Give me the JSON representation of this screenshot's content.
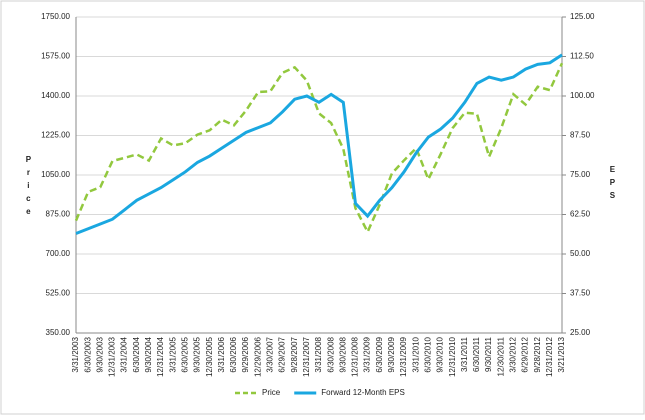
{
  "chart_data": {
    "type": "line",
    "y_label": "Price",
    "y2_label": "EPS",
    "categories": [
      "3/31/2003",
      "6/30/2003",
      "9/30/2003",
      "12/31/2003",
      "3/31/2004",
      "6/30/2004",
      "9/30/2004",
      "12/31/2004",
      "3/31/2005",
      "6/30/2005",
      "9/30/2005",
      "12/30/2005",
      "3/31/2006",
      "6/30/2006",
      "9/29/2006",
      "12/29/2006",
      "3/30/2007",
      "6/29/2007",
      "9/28/2007",
      "12/31/2007",
      "3/31/2008",
      "6/30/2008",
      "9/30/2008",
      "12/31/2008",
      "3/31/2009",
      "6/30/2009",
      "9/30/2009",
      "12/31/2009",
      "3/31/2010",
      "6/30/2010",
      "9/30/2010",
      "12/31/2010",
      "3/31/2011",
      "6/30/2011",
      "9/30/2011",
      "12/30/2011",
      "3/30/2012",
      "6/29/2012",
      "9/28/2012",
      "12/31/2012",
      "3/21/2013"
    ],
    "series": [
      {
        "name": "Price",
        "color": "#92c83e",
        "dashed": true,
        "values": [
          848,
          975,
          996,
          1112,
          1126,
          1141,
          1114,
          1212,
          1181,
          1191,
          1229,
          1248,
          1295,
          1270,
          1336,
          1418,
          1421,
          1503,
          1527,
          1468,
          1323,
          1280,
          1166,
          903,
          798,
          919,
          1057,
          1115,
          1169,
          1031,
          1141,
          1258,
          1326,
          1321,
          1131,
          1258,
          1408,
          1362,
          1441,
          1426,
          1545
        ]
      },
      {
        "name": "Forward 12-Month EPS",
        "color": "#1aa7e0",
        "axis": "y2",
        "values": [
          56.5,
          58,
          59.5,
          61,
          64,
          67,
          69,
          71,
          73.5,
          76,
          79,
          81,
          83.5,
          86,
          88.5,
          90,
          91.5,
          95,
          99,
          100,
          98,
          100.5,
          98,
          66,
          62,
          67,
          71,
          76,
          82,
          87,
          89.5,
          93,
          98,
          104,
          106,
          105,
          106,
          108.5,
          110,
          110.5,
          113
        ]
      }
    ],
    "ylim": [
      350,
      1750
    ],
    "yticks": [
      {
        "value": 350,
        "label": "350.00"
      },
      {
        "value": 525,
        "label": "525.00"
      },
      {
        "value": 700,
        "label": "700.00"
      },
      {
        "value": 875,
        "label": "875.00"
      },
      {
        "value": 1050,
        "label": "1050.00"
      },
      {
        "value": 1225,
        "label": "1225.00"
      },
      {
        "value": 1400,
        "label": "1400.00"
      },
      {
        "value": 1575,
        "label": "1575.00"
      },
      {
        "value": 1750,
        "label": "1750.00"
      }
    ],
    "y2lim": [
      25,
      125
    ],
    "y2ticks": [
      {
        "value": 25,
        "label": "25.00"
      },
      {
        "value": 37.5,
        "label": "37.50"
      },
      {
        "value": 50,
        "label": "50.00"
      },
      {
        "value": 62.5,
        "label": "62.50"
      },
      {
        "value": 75,
        "label": "75.00"
      },
      {
        "value": 87.5,
        "label": "87.50"
      },
      {
        "value": 100,
        "label": "100.00"
      },
      {
        "value": 112.5,
        "label": "112.50"
      },
      {
        "value": 125,
        "label": "125.00"
      }
    ],
    "legend": "bottom"
  }
}
